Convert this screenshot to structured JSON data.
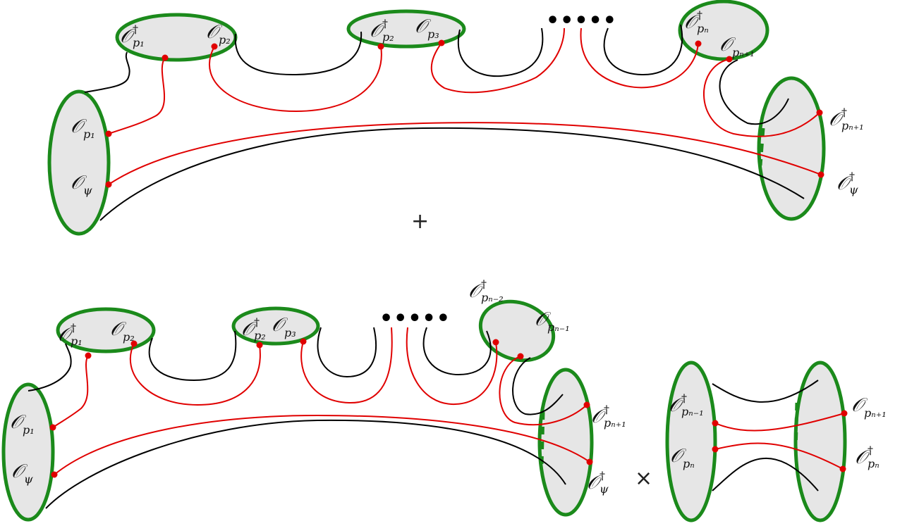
{
  "colors": {
    "boundary": "#1b8a1b",
    "disk_fill": "#e6e6e6",
    "operator_line": "#e00000",
    "surface_line": "#000000",
    "marker": "#e00000"
  },
  "top": {
    "labels": {
      "O_p1_dag": {
        "sym": "𝒪",
        "sup": "†",
        "sub": "p₁"
      },
      "O_p2": {
        "sym": "𝒪",
        "sub": "p₂"
      },
      "O_p2_dag": {
        "sym": "𝒪",
        "sup": "†",
        "sub": "p₂"
      },
      "O_p3": {
        "sym": "𝒪",
        "sub": "p₃"
      },
      "O_pn_dag": {
        "sym": "𝒪",
        "sup": "†",
        "sub": "pₙ"
      },
      "O_pn1": {
        "sym": "𝒪",
        "sub": "pₙ₊₁"
      },
      "O_p1": {
        "sym": "𝒪",
        "sub": "p₁"
      },
      "O_psi": {
        "sym": "𝒪",
        "sub": "ψ"
      },
      "O_pn1_dag": {
        "sym": "𝒪",
        "sup": "†",
        "sub": "pₙ₊₁"
      },
      "O_psi_dag": {
        "sym": "𝒪",
        "sup": "†",
        "sub": "ψ"
      }
    },
    "ellipsis": "•••••"
  },
  "plus": "+",
  "times": "×",
  "bottom": {
    "labels": {
      "O_p1_dag": {
        "sym": "𝒪",
        "sup": "†",
        "sub": "p₁"
      },
      "O_p2": {
        "sym": "𝒪",
        "sub": "p₂"
      },
      "O_p2_dag": {
        "sym": "𝒪",
        "sup": "†",
        "sub": "p₂"
      },
      "O_p3": {
        "sym": "𝒪",
        "sub": "p₃"
      },
      "O_pn2_dag": {
        "sym": "𝒪",
        "sup": "†",
        "sub": "pₙ₋₂"
      },
      "O_pn_1": {
        "sym": "𝒪",
        "sub": "pₙ₋₁"
      },
      "O_p1": {
        "sym": "𝒪",
        "sub": "p₁"
      },
      "O_psi": {
        "sym": "𝒪",
        "sub": "ψ"
      },
      "O_pn1_dag": {
        "sym": "𝒪",
        "sup": "†",
        "sub": "pₙ₊₁"
      },
      "O_psi_dag": {
        "sym": "𝒪",
        "sup": "†",
        "sub": "ψ"
      }
    },
    "ellipsis": "•••••"
  },
  "right": {
    "labels": {
      "O_pn_1_dag": {
        "sym": "𝒪",
        "sup": "†",
        "sub": "pₙ₋₁"
      },
      "O_pn": {
        "sym": "𝒪",
        "sub": "pₙ"
      },
      "O_pn1": {
        "sym": "𝒪",
        "sub": "pₙ₊₁"
      },
      "O_pn_dag": {
        "sym": "𝒪",
        "sup": "†",
        "sub": "pₙ"
      }
    }
  }
}
